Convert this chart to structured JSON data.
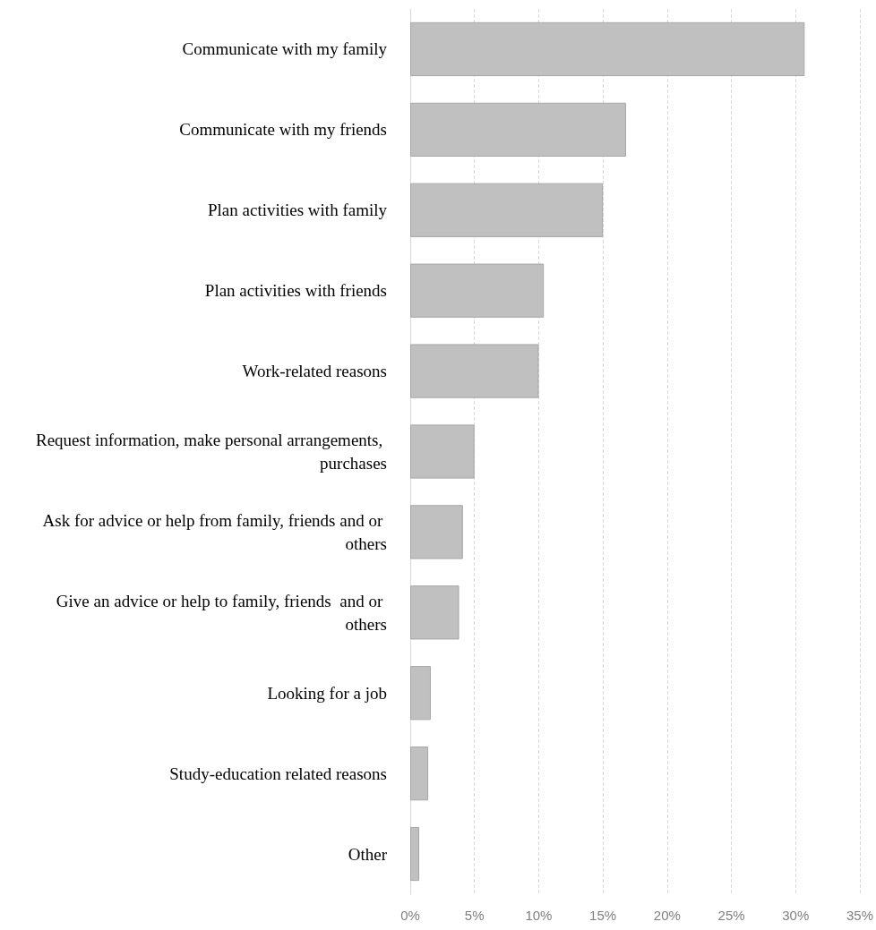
{
  "chart_data": {
    "type": "bar",
    "orientation": "horizontal",
    "categories": [
      "Communicate with my family",
      "Communicate with my friends",
      "Plan activities with family",
      "Plan activities with friends",
      "Work-related reasons",
      "Request information, make personal arrangements, purchases",
      "Ask for advice or help from family, friends and or others",
      "Give an advice or help to family, friends  and or others",
      "Looking for a job",
      "Study-education related reasons",
      "Other"
    ],
    "values": [
      30.7,
      16.8,
      15.0,
      10.4,
      10.0,
      5.0,
      4.1,
      3.8,
      1.6,
      1.4,
      0.7
    ],
    "color": "#c0c0c0",
    "xlim": [
      0,
      35
    ],
    "xticks": [
      {
        "value": 0,
        "label": "0%"
      },
      {
        "value": 5,
        "label": "5%"
      },
      {
        "value": 10,
        "label": "10%"
      },
      {
        "value": 15,
        "label": "15%"
      },
      {
        "value": 20,
        "label": "20%"
      },
      {
        "value": 25,
        "label": "25%"
      },
      {
        "value": 30,
        "label": "30%"
      },
      {
        "value": 35,
        "label": "35%"
      }
    ],
    "grid": "x"
  }
}
